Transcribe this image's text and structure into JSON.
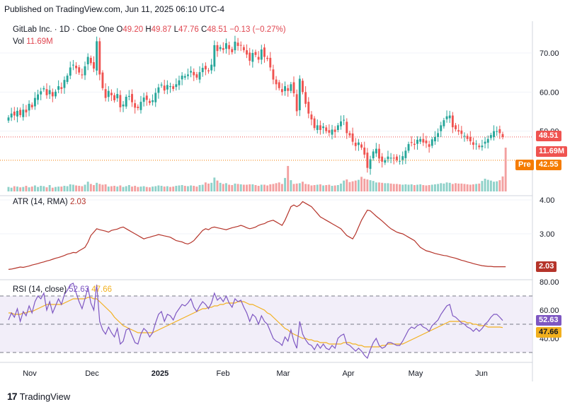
{
  "caption": "Published on TradingView.com, Jun 11, 2025 06:10 UTC-4",
  "brand": "TradingView",
  "legend": {
    "symbol": "GitLab Inc. · 1D · Cboe One",
    "o_label": "O",
    "o": "49.20",
    "h_label": "H",
    "h": "49.87",
    "l_label": "L",
    "l": "47.76",
    "c_label": "C",
    "c": "48.51",
    "change": "−0.13 (−0.27%)",
    "vol_label": "Vol",
    "vol": "11.69M",
    "atr_label": "ATR (14, RMA)",
    "atr": "2.03",
    "rsi_label": "RSI (14, close)",
    "rsi": "52.63",
    "rsi_ma": "47.66"
  },
  "price_tags": {
    "last": "48.51",
    "vol": "11.69M",
    "pre_label": "Pre",
    "pre": "42.55",
    "atr": "2.03",
    "rsi": "52.63",
    "rsi_ma": "47.66"
  },
  "colors": {
    "up": "#26a69a",
    "down": "#ef5350",
    "atr": "#b5342a",
    "rsi": "#7e57c2",
    "rsi_ma": "#f2b01e",
    "pre": "#f57c00"
  },
  "chart_data": [
    {
      "type": "candlestick",
      "x_ticks": [
        "Nov",
        "Dec",
        "2025",
        "Feb",
        "Mar",
        "Apr",
        "May",
        "Jun"
      ],
      "ylim": [
        40,
        75
      ],
      "y_ticks": [
        "70.00",
        "60.00",
        "50.00"
      ],
      "series": [
        {
          "name": "close",
          "values": [
            53.5,
            54.5,
            54,
            55.2,
            54.1,
            55.5,
            54.8,
            57.0,
            56.1,
            58.5,
            59.4,
            60.2,
            61.0,
            59.2,
            60.5,
            58.9,
            60.1,
            61.5,
            60.8,
            63.1,
            64.2,
            66.3,
            67.0,
            66.1,
            65.0,
            64.3,
            66.6,
            69.0,
            67.4,
            66.0,
            73.0,
            64.5,
            61.0,
            58.5,
            60.3,
            59.2,
            57.9,
            59.5,
            56.1,
            56.8,
            58.8,
            59.0,
            57.4,
            56.0,
            55.9,
            57.5,
            58.6,
            58.0,
            57.2,
            57.9,
            59.8,
            61.2,
            61.9,
            60.4,
            61.8,
            61.5,
            60.8,
            62.0,
            63.0,
            64.2,
            64.1,
            64.5,
            65.4,
            64.3,
            63.7,
            65.1,
            66.2,
            65.8,
            65.3,
            67.0,
            72.0,
            70.5,
            71.5,
            70.8,
            72.5,
            71.0,
            70.2,
            72.9,
            71.8,
            72.0,
            70.7,
            69.6,
            68.0,
            70.0,
            69.5,
            68.3,
            70.9,
            69.0,
            68.5,
            66.3,
            63.2,
            62.0,
            61.0,
            60.0,
            61.5,
            60.3,
            62.0,
            59.7,
            55.1,
            63.4,
            60.0,
            57.0,
            54.5,
            53.0,
            50.8,
            51.5,
            50.3,
            51.2,
            50.0,
            49.6,
            50.4,
            49.8,
            51.5,
            52.5,
            52.9,
            49.5,
            48.9,
            47.3,
            46.2,
            47.1,
            45.8,
            44.0,
            40.6,
            42.8,
            44.8,
            45.5,
            43.0,
            42.2,
            42.6,
            43.5,
            43.2,
            43.0,
            42.6,
            42.4,
            43.6,
            45.0,
            46.7,
            47.0,
            46.5,
            47.8,
            48.0,
            47.1,
            46.9,
            46.0,
            47.9,
            48.5,
            49.5,
            51.5,
            52.8,
            53.8,
            54.0,
            51.0,
            50.5,
            49.9,
            49.3,
            48.8,
            48.0,
            47.4,
            46.5,
            46.8,
            45.9,
            46.3,
            47.3,
            48.0,
            49.0,
            50.0,
            50.0,
            49.5,
            48.51
          ]
        }
      ]
    },
    {
      "type": "bar",
      "name": "volume",
      "values": [
        1.2,
        1.0,
        1.4,
        1.3,
        1.1,
        1.2,
        1.5,
        1.1,
        1.3,
        1.6,
        1.2,
        1.5,
        1.4,
        1.1,
        1.7,
        1.0,
        1.2,
        1.3,
        1.3,
        1.5,
        1.4,
        1.9,
        1.8,
        1.6,
        1.5,
        1.4,
        1.8,
        2.6,
        2.0,
        1.7,
        2.3,
        2.0,
        1.8,
        1.9,
        1.3,
        1.4,
        1.5,
        1.3,
        1.6,
        1.2,
        1.4,
        1.7,
        1.3,
        1.5,
        1.2,
        1.3,
        1.4,
        1.2,
        1.1,
        1.3,
        1.4,
        1.6,
        1.5,
        1.3,
        1.4,
        1.2,
        1.3,
        1.5,
        1.6,
        1.7,
        1.5,
        1.4,
        1.6,
        1.5,
        1.3,
        1.7,
        1.8,
        2.4,
        2.1,
        2.3,
        3.7,
        2.9,
        2.3,
        2.0,
        2.2,
        1.8,
        1.7,
        2.1,
        2.0,
        1.9,
        1.8,
        1.8,
        1.9,
        1.9,
        1.7,
        1.5,
        1.8,
        1.8,
        1.6,
        1.9,
        2.0,
        2.2,
        2.4,
        2.0,
        3.6,
        6.8,
        3.0,
        2.0,
        2.1,
        2.2,
        2.6,
        2.0,
        1.9,
        1.6,
        1.7,
        1.8,
        1.9,
        1.6,
        1.7,
        1.8,
        1.5,
        1.6,
        1.7,
        2.1,
        2.9,
        3.2,
        2.5,
        2.7,
        2.9,
        3.1,
        3.9,
        3.4,
        3.2,
        3.0,
        2.8,
        2.4,
        2.4,
        2.3,
        2.2,
        2.2,
        2.1,
        2.0,
        2.0,
        1.9,
        1.8,
        1.9,
        1.8,
        1.9,
        1.7,
        1.8,
        1.9,
        1.7,
        1.6,
        1.7,
        1.8,
        1.9,
        2.0,
        2.2,
        2.1,
        2.4,
        2.3,
        2.0,
        2.2,
        2.1,
        2.1,
        2.0,
        1.9,
        1.8,
        1.9,
        2.0,
        2.1,
        2.8,
        3.4,
        3.1,
        2.9,
        2.6,
        2.7,
        3.0,
        4.0,
        11.69
      ]
    },
    {
      "type": "line",
      "name": "ATR (14, RMA)",
      "ylim": [
        1.7,
        4.1
      ],
      "y_ticks": [
        "4.00",
        "3.00"
      ],
      "values": [
        1.95,
        1.96,
        1.98,
        2.0,
        2.02,
        2.01,
        2.03,
        2.05,
        2.08,
        2.1,
        2.12,
        2.15,
        2.17,
        2.2,
        2.22,
        2.25,
        2.28,
        2.3,
        2.33,
        2.36,
        2.4,
        2.42,
        2.45,
        2.44,
        2.5,
        2.55,
        2.6,
        2.75,
        2.95,
        3.05,
        3.15,
        3.12,
        3.1,
        3.08,
        3.05,
        3.1,
        3.12,
        3.14,
        3.18,
        3.2,
        3.15,
        3.1,
        3.05,
        3.0,
        2.95,
        2.9,
        2.85,
        2.88,
        2.9,
        2.93,
        2.95,
        2.98,
        2.96,
        2.94,
        2.92,
        2.9,
        2.85,
        2.8,
        2.78,
        2.76,
        2.72,
        2.7,
        2.74,
        2.8,
        2.9,
        3.0,
        3.1,
        3.15,
        3.12,
        3.18,
        3.2,
        3.18,
        3.16,
        3.14,
        3.12,
        3.15,
        3.18,
        3.2,
        3.22,
        3.25,
        3.22,
        3.18,
        3.15,
        3.17,
        3.2,
        3.25,
        3.28,
        3.3,
        3.35,
        3.38,
        3.4,
        3.35,
        3.3,
        3.25,
        3.4,
        3.6,
        3.8,
        3.85,
        3.8,
        3.85,
        3.95,
        3.9,
        3.85,
        3.8,
        3.7,
        3.6,
        3.5,
        3.45,
        3.4,
        3.35,
        3.3,
        3.25,
        3.2,
        3.15,
        3.05,
        2.95,
        2.9,
        2.85,
        3.0,
        3.2,
        3.4,
        3.55,
        3.7,
        3.68,
        3.6,
        3.52,
        3.45,
        3.38,
        3.3,
        3.22,
        3.15,
        3.1,
        3.05,
        3.02,
        3.0,
        2.95,
        2.9,
        2.85,
        2.8,
        2.7,
        2.6,
        2.55,
        2.5,
        2.48,
        2.45,
        2.42,
        2.4,
        2.38,
        2.36,
        2.35,
        2.32,
        2.3,
        2.28,
        2.25,
        2.22,
        2.2,
        2.17,
        2.15,
        2.12,
        2.1,
        2.08,
        2.06,
        2.05,
        2.04,
        2.04,
        2.03,
        2.03,
        2.03,
        2.03,
        2.03
      ]
    },
    {
      "type": "line",
      "name": "RSI (14, close)",
      "ylim": [
        25,
        82
      ],
      "y_ticks": [
        "80.00",
        "60.00",
        "40.00"
      ],
      "bands": [
        30,
        50,
        70
      ],
      "series": [
        {
          "name": "RSI",
          "values": [
            53,
            58,
            55,
            61,
            52,
            59,
            56,
            63,
            58,
            66,
            70,
            68,
            72,
            60,
            66,
            58,
            63,
            68,
            64,
            71,
            74,
            78,
            79,
            72,
            66,
            61,
            68,
            76,
            65,
            60,
            78,
            52,
            46,
            43,
            48,
            44,
            41,
            47,
            36,
            38,
            46,
            47,
            42,
            37,
            36,
            43,
            47,
            45,
            41,
            44,
            51,
            57,
            59,
            52,
            57,
            56,
            53,
            58,
            61,
            64,
            63,
            65,
            68,
            62,
            59,
            63,
            66,
            64,
            61,
            65,
            72,
            67,
            69,
            66,
            70,
            65,
            62,
            68,
            66,
            67,
            62,
            58,
            52,
            57,
            55,
            50,
            56,
            52,
            50,
            45,
            40,
            38,
            37,
            35,
            41,
            38,
            46,
            38,
            33,
            52,
            43,
            39,
            36,
            35,
            32,
            36,
            33,
            36,
            33,
            32,
            35,
            33,
            40,
            42,
            43,
            36,
            35,
            33,
            31,
            33,
            31,
            28,
            26,
            32,
            37,
            40,
            35,
            33,
            34,
            37,
            37,
            36,
            35,
            35,
            38,
            42,
            46,
            48,
            47,
            49,
            50,
            48,
            47,
            45,
            49,
            51,
            53,
            57,
            60,
            63,
            64,
            56,
            55,
            53,
            51,
            50,
            48,
            47,
            45,
            47,
            45,
            47,
            50,
            52,
            55,
            57,
            57,
            55,
            52.63
          ]
        },
        {
          "name": "RSI-based MA",
          "values": [
            58,
            58,
            57,
            57,
            57,
            58,
            58,
            59,
            59,
            60,
            61,
            62,
            63,
            64,
            64,
            64,
            64,
            64,
            64,
            65,
            66,
            67,
            68,
            68,
            68,
            68,
            68,
            69,
            69,
            68,
            68,
            66,
            64,
            62,
            60,
            58,
            55,
            53,
            51,
            49,
            48,
            47,
            46,
            45,
            44,
            44,
            44,
            44,
            44,
            44,
            45,
            46,
            47,
            48,
            49,
            50,
            51,
            52,
            53,
            54,
            55,
            56,
            57,
            58,
            59,
            60,
            61,
            61,
            62,
            62,
            63,
            63,
            64,
            64,
            65,
            65,
            65,
            65,
            66,
            66,
            66,
            65,
            64,
            64,
            63,
            62,
            61,
            60,
            58,
            57,
            55,
            53,
            51,
            49,
            47,
            46,
            44,
            43,
            42,
            41,
            40,
            40,
            39,
            39,
            38,
            38,
            37,
            37,
            37,
            36,
            36,
            36,
            36,
            36,
            37,
            37,
            37,
            36,
            36,
            35,
            35,
            34,
            34,
            34,
            34,
            34,
            34,
            35,
            35,
            36,
            36,
            36,
            36,
            36,
            36,
            37,
            38,
            39,
            40,
            41,
            42,
            43,
            44,
            45,
            46,
            47,
            48,
            49,
            50,
            51,
            52,
            52,
            52,
            52,
            52,
            52,
            51,
            51,
            50,
            50,
            49,
            49,
            49,
            48,
            48,
            48,
            48,
            48,
            47.66
          ]
        }
      ]
    }
  ]
}
